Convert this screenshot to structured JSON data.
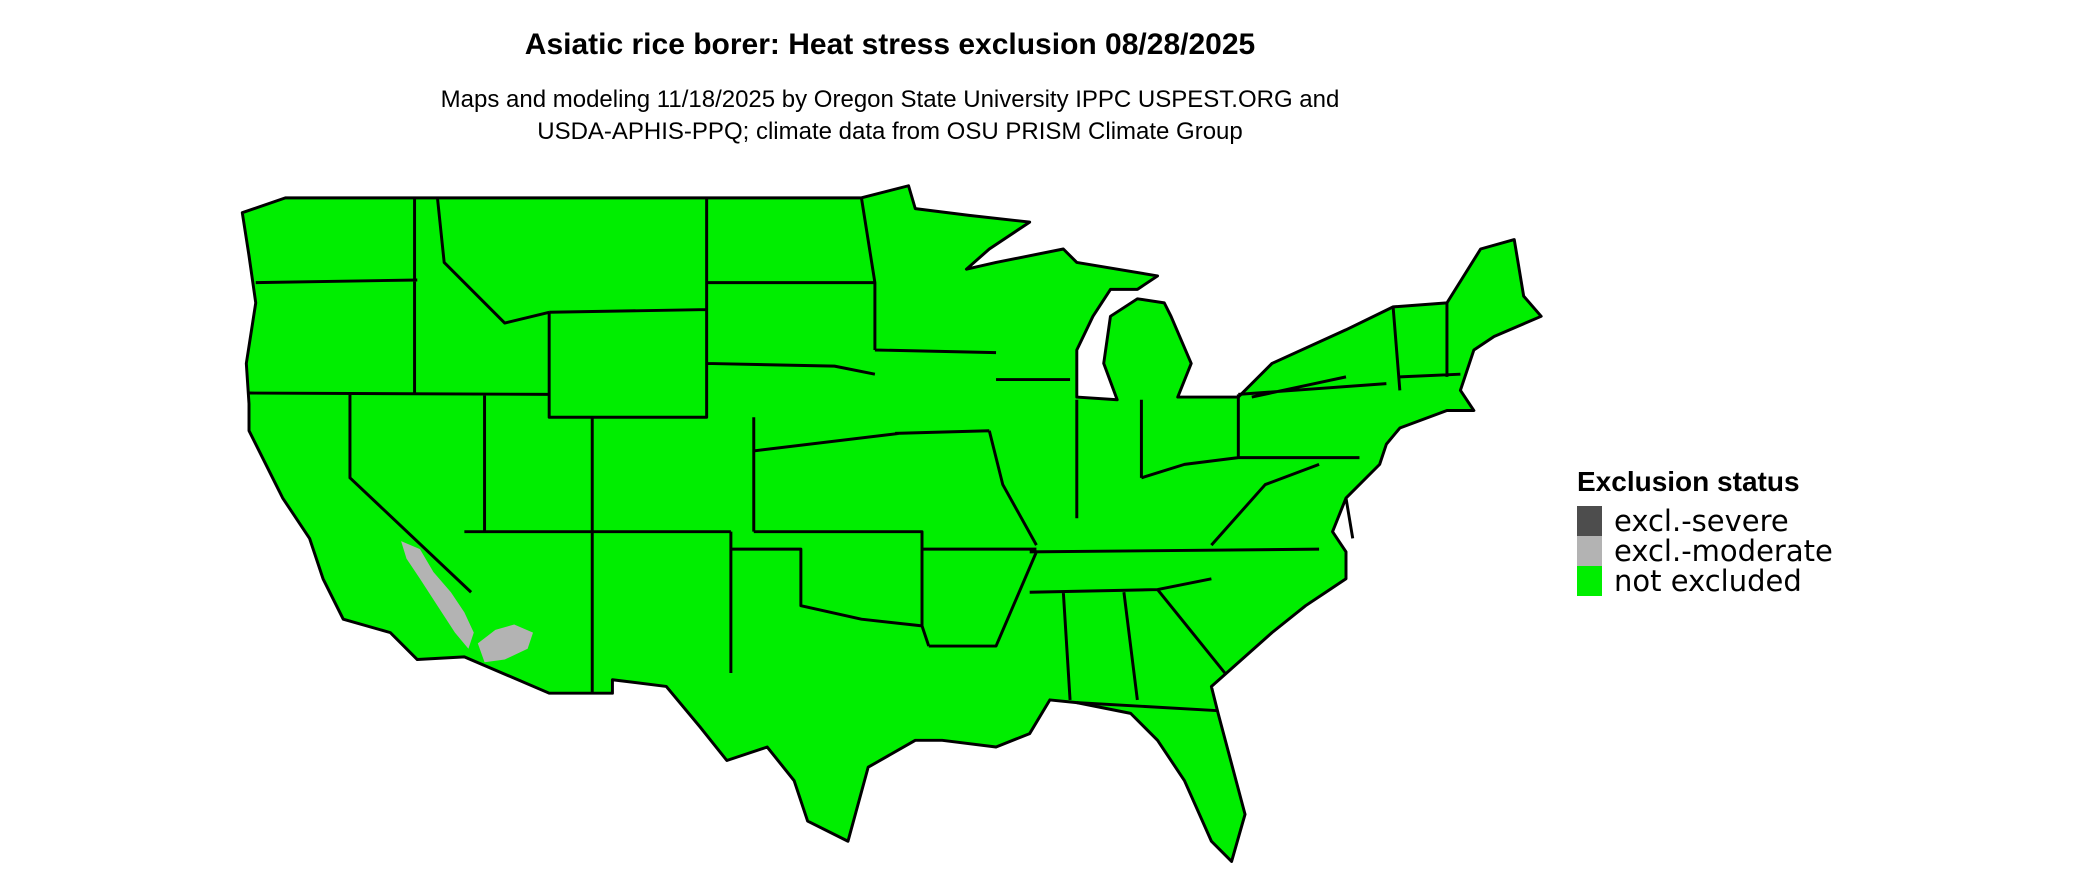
{
  "title": "Asiatic rice borer: Heat stress exclusion 08/28/2025",
  "subtitle_lines": [
    "Maps and modeling 11/18/2025 by Oregon State University IPPC USPEST.ORG and",
    "USDA-APHIS-PPQ; climate data from OSU PRISM Climate Group"
  ],
  "region": "Contiguous United States (state boundaries)",
  "legend": {
    "title": "Exclusion status",
    "items": [
      {
        "label": "excl.-severe",
        "color": "#4d4d4d"
      },
      {
        "label": "excl.-moderate",
        "color": "#b3b3b3"
      },
      {
        "label": "not excluded",
        "color": "#00ee00"
      }
    ]
  },
  "colors": {
    "not_excluded": "#00ee00",
    "moderate": "#b3b3b3",
    "border": "#000000"
  }
}
